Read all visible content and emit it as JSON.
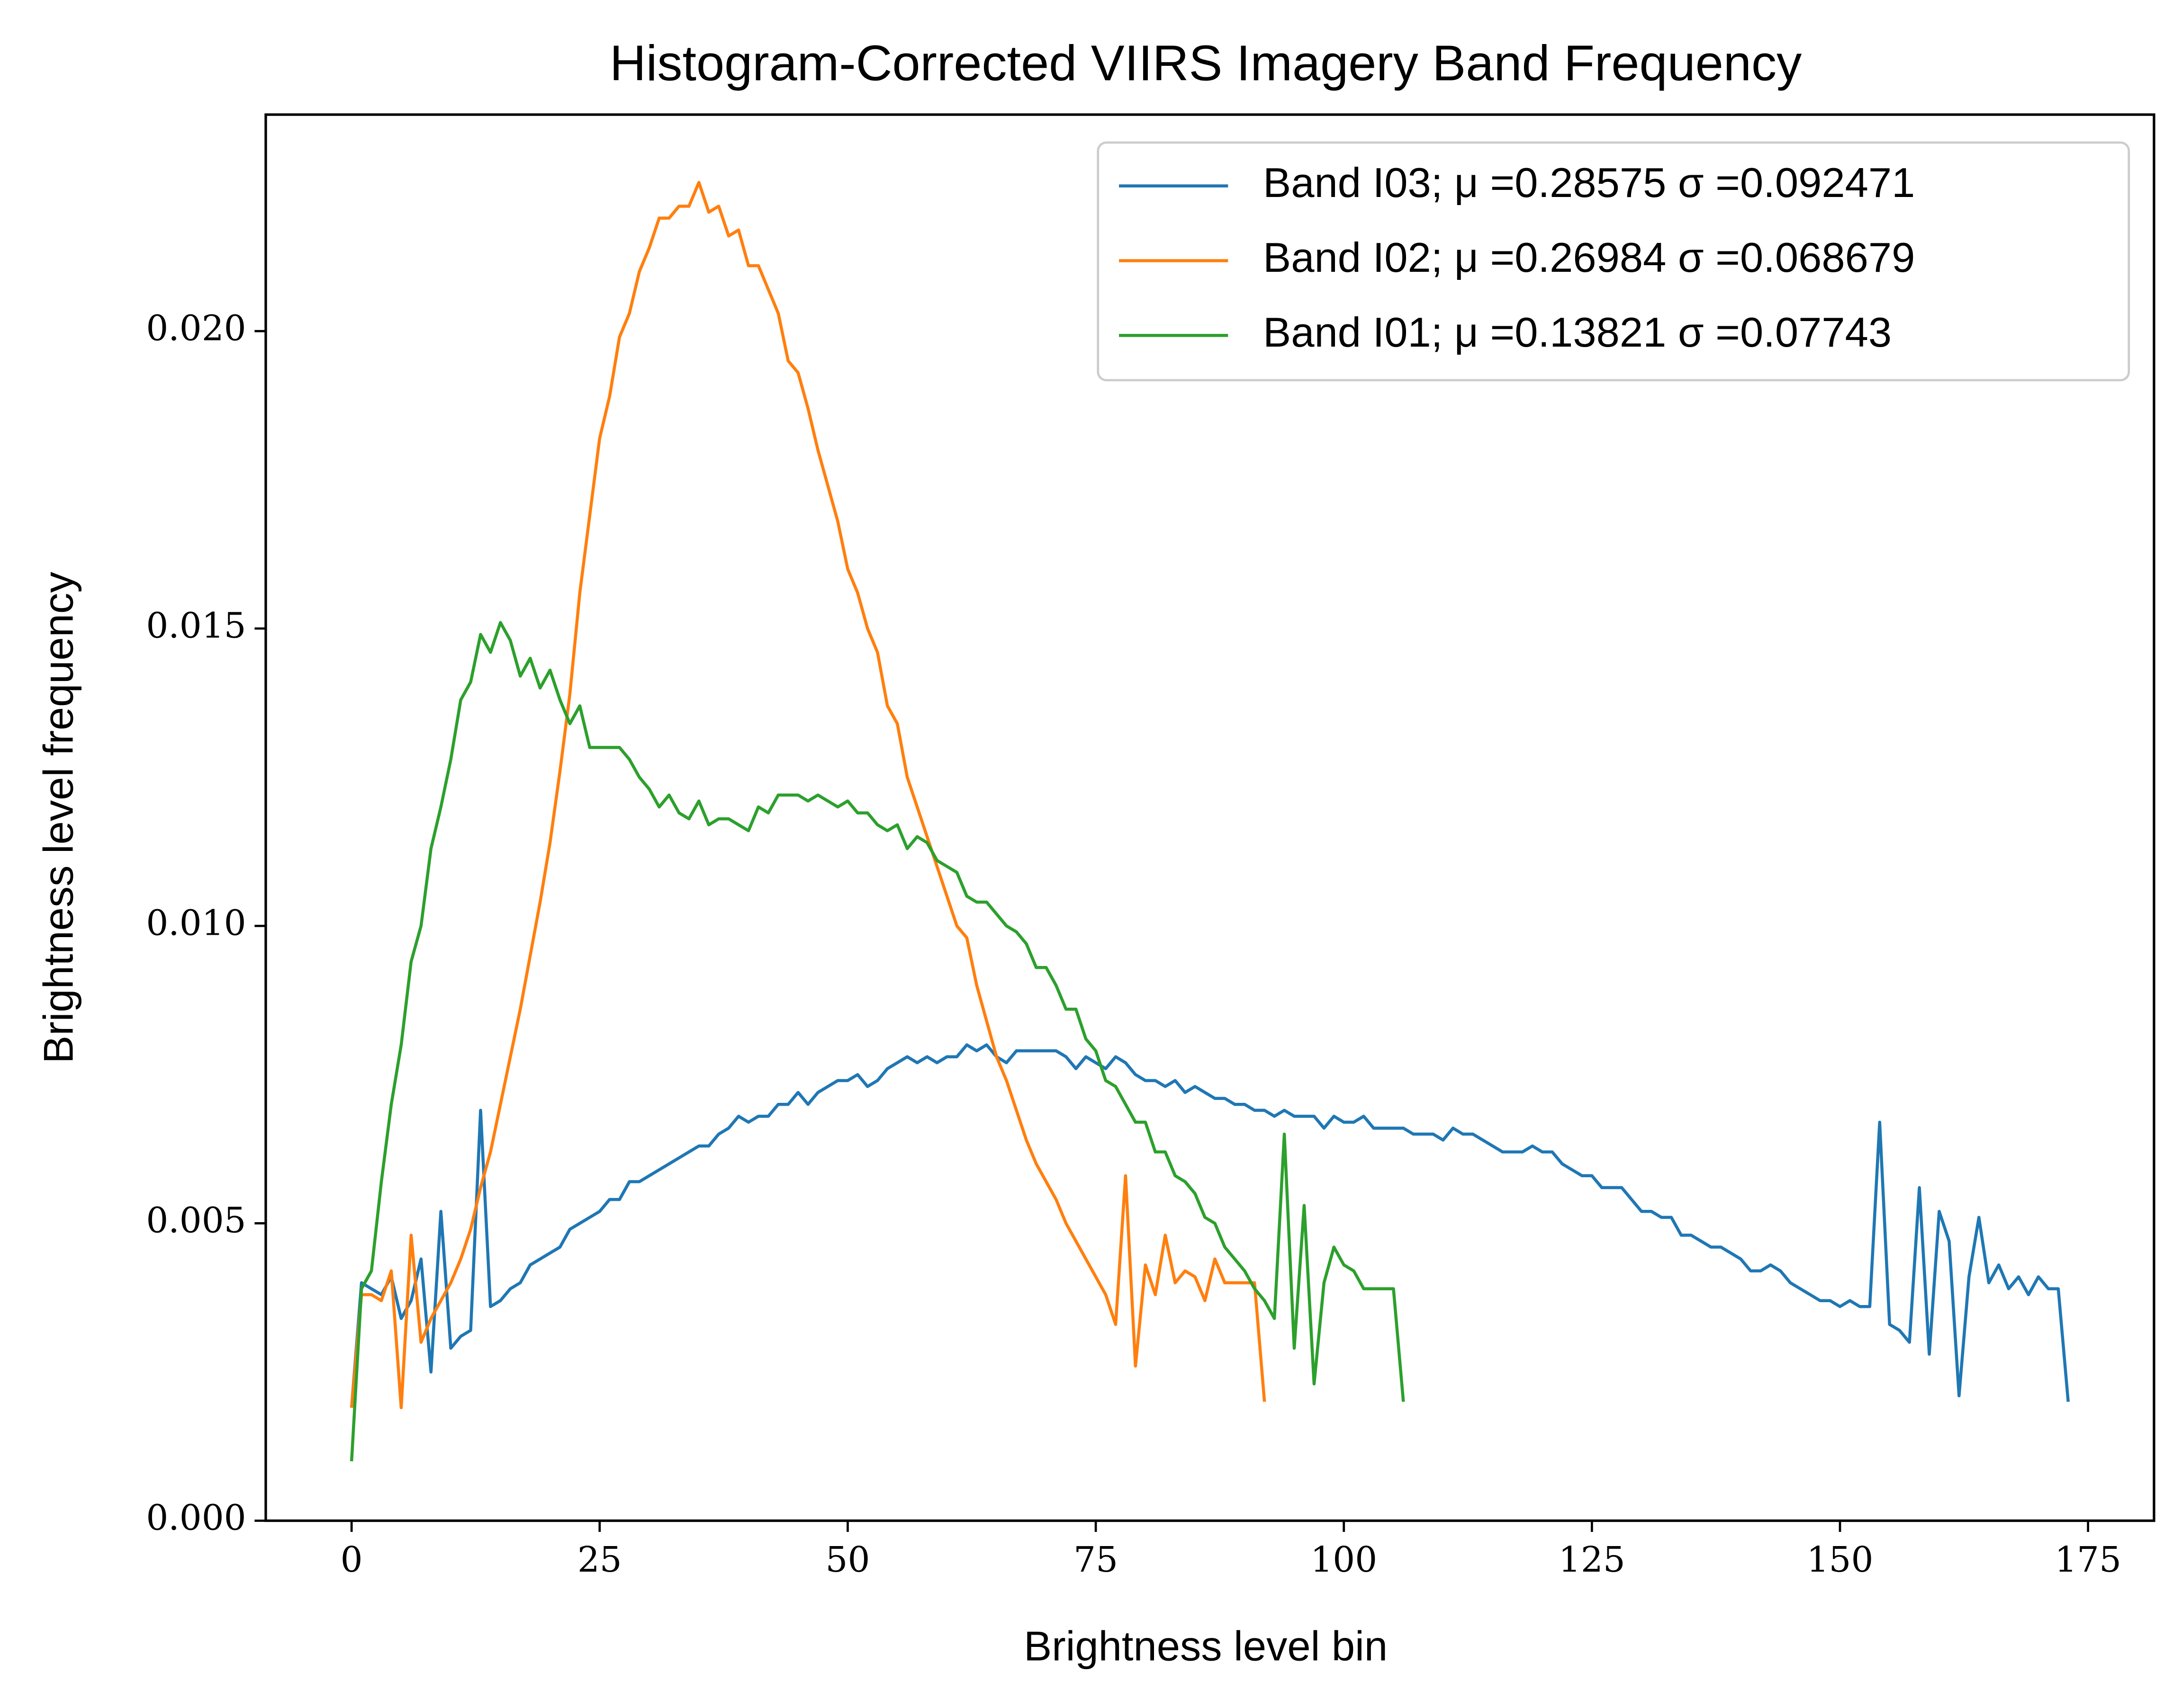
{
  "chart_data": {
    "type": "line",
    "title": "Histogram-Corrected VIIRS Imagery Band Frequency",
    "x_label": "Brightness level bin",
    "y_label": "Brightness level frequency",
    "xlim": [
      -8.65,
      181.65
    ],
    "ylim": [
      0,
      0.02364
    ],
    "xticks": [
      0,
      25,
      50,
      75,
      100,
      125,
      150,
      175
    ],
    "yticks": [
      {
        "value": 0,
        "label": "0.000"
      },
      {
        "value": 0.005,
        "label": "0.005"
      },
      {
        "value": 0.01,
        "label": "0.010"
      },
      {
        "value": 0.015,
        "label": "0.015"
      },
      {
        "value": 0.02,
        "label": "0.020"
      }
    ],
    "legend": "upper right",
    "series": [
      {
        "name": "Band I03; μ =0.28575 σ =0.092471",
        "color": "#1f77b4",
        "x": [
          0,
          1,
          2,
          3,
          4,
          5,
          6,
          7,
          8,
          9,
          10,
          11,
          12,
          13,
          14,
          15,
          16,
          17,
          18,
          19,
          20,
          21,
          22,
          23,
          24,
          25,
          26,
          27,
          28,
          29,
          30,
          31,
          32,
          33,
          34,
          35,
          36,
          37,
          38,
          39,
          40,
          41,
          42,
          43,
          44,
          45,
          46,
          47,
          48,
          49,
          50,
          51,
          52,
          53,
          54,
          55,
          56,
          57,
          58,
          59,
          60,
          61,
          62,
          63,
          64,
          65,
          66,
          67,
          68,
          69,
          70,
          71,
          72,
          73,
          74,
          75,
          76,
          77,
          78,
          79,
          80,
          81,
          82,
          83,
          84,
          85,
          86,
          87,
          88,
          89,
          90,
          91,
          92,
          93,
          94,
          95,
          96,
          97,
          98,
          99,
          100,
          101,
          102,
          103,
          104,
          105,
          106,
          107,
          108,
          109,
          110,
          111,
          112,
          113,
          114,
          115,
          116,
          117,
          118,
          119,
          120,
          121,
          122,
          123,
          124,
          125,
          126,
          127,
          128,
          129,
          130,
          131,
          132,
          133,
          134,
          135,
          136,
          137,
          138,
          139,
          140,
          141,
          142,
          143,
          144,
          145,
          146,
          147,
          148,
          149,
          150,
          151,
          152,
          153,
          154,
          155,
          156,
          157,
          158,
          159,
          160,
          161,
          162,
          163,
          164,
          165,
          166,
          167,
          168,
          169,
          170,
          171,
          172,
          173
        ],
        "values": [
          0.0019,
          0.004,
          0.0039,
          0.0038,
          0.0041,
          0.0034,
          0.0037,
          0.0044,
          0.0025,
          0.0052,
          0.0029,
          0.0031,
          0.0032,
          0.0069,
          0.0036,
          0.0037,
          0.0039,
          0.004,
          0.0043,
          0.0044,
          0.0045,
          0.0046,
          0.0049,
          0.005,
          0.0051,
          0.0052,
          0.0054,
          0.0054,
          0.0057,
          0.0057,
          0.0058,
          0.0059,
          0.006,
          0.0061,
          0.0062,
          0.0063,
          0.0063,
          0.0065,
          0.0066,
          0.0068,
          0.0067,
          0.0068,
          0.0068,
          0.007,
          0.007,
          0.0072,
          0.007,
          0.0072,
          0.0073,
          0.0074,
          0.0074,
          0.0075,
          0.0073,
          0.0074,
          0.0076,
          0.0077,
          0.0078,
          0.0077,
          0.0078,
          0.0077,
          0.0078,
          0.0078,
          0.008,
          0.0079,
          0.008,
          0.0078,
          0.0077,
          0.0079,
          0.0079,
          0.0079,
          0.0079,
          0.0079,
          0.0078,
          0.0076,
          0.0078,
          0.0077,
          0.0076,
          0.0078,
          0.0077,
          0.0075,
          0.0074,
          0.0074,
          0.0073,
          0.0074,
          0.0072,
          0.0073,
          0.0072,
          0.0071,
          0.0071,
          0.007,
          0.007,
          0.0069,
          0.0069,
          0.0068,
          0.0069,
          0.0068,
          0.0068,
          0.0068,
          0.0066,
          0.0068,
          0.0067,
          0.0067,
          0.0068,
          0.0066,
          0.0066,
          0.0066,
          0.0066,
          0.0065,
          0.0065,
          0.0065,
          0.0064,
          0.0066,
          0.0065,
          0.0065,
          0.0064,
          0.0063,
          0.0062,
          0.0062,
          0.0062,
          0.0063,
          0.0062,
          0.0062,
          0.006,
          0.0059,
          0.0058,
          0.0058,
          0.0056,
          0.0056,
          0.0056,
          0.0054,
          0.0052,
          0.0052,
          0.0051,
          0.0051,
          0.0048,
          0.0048,
          0.0047,
          0.0046,
          0.0046,
          0.0045,
          0.0044,
          0.0042,
          0.0042,
          0.0043,
          0.0042,
          0.004,
          0.0039,
          0.0038,
          0.0037,
          0.0037,
          0.0036,
          0.0037,
          0.0036,
          0.0036,
          0.0067,
          0.0033,
          0.0032,
          0.003,
          0.0056,
          0.0028,
          0.0052,
          0.0047,
          0.0021,
          0.0041,
          0.0051,
          0.004,
          0.0043,
          0.0039,
          0.0041,
          0.0038,
          0.0041,
          0.0039,
          0.0039,
          0.002
        ]
      },
      {
        "name": "Band I02; μ =0.26984 σ =0.068679",
        "color": "#ff7f0e",
        "x": [
          0,
          1,
          2,
          3,
          4,
          5,
          6,
          7,
          8,
          9,
          10,
          11,
          12,
          13,
          14,
          15,
          16,
          17,
          18,
          19,
          20,
          21,
          22,
          23,
          24,
          25,
          26,
          27,
          28,
          29,
          30,
          31,
          32,
          33,
          34,
          35,
          36,
          37,
          38,
          39,
          40,
          41,
          42,
          43,
          44,
          45,
          46,
          47,
          48,
          49,
          50,
          51,
          52,
          53,
          54,
          55,
          56,
          57,
          58,
          59,
          60,
          61,
          62,
          63,
          64,
          65,
          66,
          67,
          68,
          69,
          70,
          71,
          72,
          73,
          74,
          75,
          76,
          77,
          78,
          79,
          80,
          81,
          82,
          83,
          84,
          85,
          86,
          87,
          88,
          89,
          90,
          91,
          92
        ],
        "values": [
          0.0019,
          0.0038,
          0.0038,
          0.0037,
          0.0042,
          0.0019,
          0.0048,
          0.003,
          0.0034,
          0.0037,
          0.004,
          0.0044,
          0.0049,
          0.0056,
          0.0062,
          0.007,
          0.0078,
          0.0086,
          0.0095,
          0.0104,
          0.0114,
          0.0126,
          0.0139,
          0.0156,
          0.0169,
          0.0182,
          0.0189,
          0.0199,
          0.0203,
          0.021,
          0.0214,
          0.0219,
          0.0219,
          0.0221,
          0.0221,
          0.0225,
          0.022,
          0.0221,
          0.0216,
          0.0217,
          0.0211,
          0.0211,
          0.0207,
          0.0203,
          0.0195,
          0.0193,
          0.0187,
          0.018,
          0.0174,
          0.0168,
          0.016,
          0.0156,
          0.015,
          0.0146,
          0.0137,
          0.0134,
          0.0125,
          0.012,
          0.0115,
          0.011,
          0.0105,
          0.01,
          0.0098,
          0.009,
          0.0084,
          0.0078,
          0.0074,
          0.0069,
          0.0064,
          0.006,
          0.0057,
          0.0054,
          0.005,
          0.0047,
          0.0044,
          0.0041,
          0.0038,
          0.0033,
          0.0058,
          0.0026,
          0.0043,
          0.0038,
          0.0048,
          0.004,
          0.0042,
          0.0041,
          0.0037,
          0.0044,
          0.004,
          0.004,
          0.004,
          0.004,
          0.002
        ]
      },
      {
        "name": "Band I01; μ =0.13821 σ =0.07743",
        "color": "#2ca02c",
        "x": [
          0,
          1,
          2,
          3,
          4,
          5,
          6,
          7,
          8,
          9,
          10,
          11,
          12,
          13,
          14,
          15,
          16,
          17,
          18,
          19,
          20,
          21,
          22,
          23,
          24,
          25,
          26,
          27,
          28,
          29,
          30,
          31,
          32,
          33,
          34,
          35,
          36,
          37,
          38,
          39,
          40,
          41,
          42,
          43,
          44,
          45,
          46,
          47,
          48,
          49,
          50,
          51,
          52,
          53,
          54,
          55,
          56,
          57,
          58,
          59,
          60,
          61,
          62,
          63,
          64,
          65,
          66,
          67,
          68,
          69,
          70,
          71,
          72,
          73,
          74,
          75,
          76,
          77,
          78,
          79,
          80,
          81,
          82,
          83,
          84,
          85,
          86,
          87,
          88,
          89,
          90,
          91,
          92,
          93,
          94,
          95,
          96,
          97,
          98,
          99,
          100,
          101,
          102,
          103,
          104,
          105,
          106
        ],
        "values": [
          0.001,
          0.0039,
          0.0042,
          0.0057,
          0.007,
          0.008,
          0.0094,
          0.01,
          0.0113,
          0.012,
          0.0128,
          0.0138,
          0.0141,
          0.0149,
          0.0146,
          0.0151,
          0.0148,
          0.0142,
          0.0145,
          0.014,
          0.0143,
          0.0138,
          0.0134,
          0.0137,
          0.013,
          0.013,
          0.013,
          0.013,
          0.0128,
          0.0125,
          0.0123,
          0.012,
          0.0122,
          0.0119,
          0.0118,
          0.0121,
          0.0117,
          0.0118,
          0.0118,
          0.0117,
          0.0116,
          0.012,
          0.0119,
          0.0122,
          0.0122,
          0.0122,
          0.0121,
          0.0122,
          0.0121,
          0.012,
          0.0121,
          0.0119,
          0.0119,
          0.0117,
          0.0116,
          0.0117,
          0.0113,
          0.0115,
          0.0114,
          0.0111,
          0.011,
          0.0109,
          0.0105,
          0.0104,
          0.0104,
          0.0102,
          0.01,
          0.0099,
          0.0097,
          0.0093,
          0.0093,
          0.009,
          0.0086,
          0.0086,
          0.0081,
          0.0079,
          0.0074,
          0.0073,
          0.007,
          0.0067,
          0.0067,
          0.0062,
          0.0062,
          0.0058,
          0.0057,
          0.0055,
          0.0051,
          0.005,
          0.0046,
          0.0044,
          0.0042,
          0.0039,
          0.0037,
          0.0034,
          0.0065,
          0.0029,
          0.0053,
          0.0023,
          0.004,
          0.0046,
          0.0043,
          0.0042,
          0.0039,
          0.0039,
          0.0039,
          0.0039,
          0.002
        ]
      }
    ]
  }
}
